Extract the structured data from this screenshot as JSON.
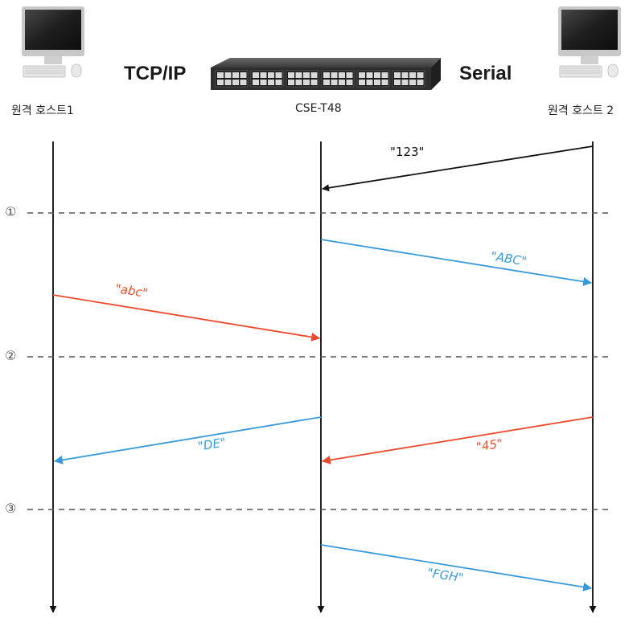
{
  "header": {
    "left_protocol": "TCP/IP",
    "right_protocol": "Serial"
  },
  "devices": {
    "host1_label": "원격 호스트1",
    "device_label": "CSE-T48",
    "host2_label": "원격 호스트 2"
  },
  "phases": [
    "①",
    "②",
    "③"
  ],
  "messages": [
    {
      "label": "\"123\"",
      "color": "#111111"
    },
    {
      "label": "\"ABC\"",
      "color": "#3a9ad9"
    },
    {
      "label": "\"abc\"",
      "color": "#ec4a2c"
    },
    {
      "label": "\"DE\"",
      "color": "#3a9ad9"
    },
    {
      "label": "\"45\"",
      "color": "#ec4a2c"
    },
    {
      "label": "\"FGH\"",
      "color": "#3a9ad9"
    }
  ],
  "colors": {
    "lifeline": "#222222",
    "divider": "#555555",
    "blue": "#3a9ad9",
    "red": "#ec4a2c"
  }
}
